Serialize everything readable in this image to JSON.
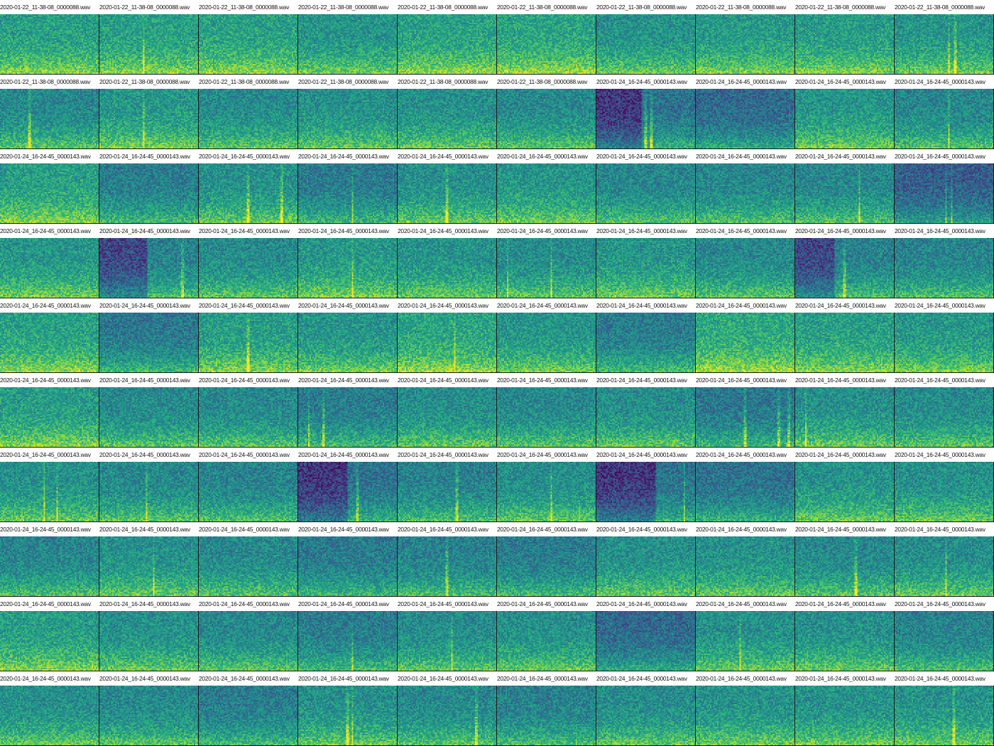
{
  "grid": {
    "rows": 10,
    "columns": 10,
    "colormap": "viridis",
    "cells": [
      {
        "label": "2020-01-22_11-38-08_0000088.wav",
        "mean": 0.56,
        "dark_left": 0,
        "bright_bands": []
      },
      {
        "label": "2020-01-22_11-38-08_0000088.wav",
        "mean": 0.56,
        "dark_left": 0,
        "bright_bands": [
          0.45
        ]
      },
      {
        "label": "2020-01-22_11-38-08_0000088.wav",
        "mean": 0.57,
        "dark_left": 0,
        "bright_bands": []
      },
      {
        "label": "2020-01-22_11-38-08_0000088.wav",
        "mean": 0.52,
        "dark_left": 0,
        "bright_bands": []
      },
      {
        "label": "2020-01-22_11-38-08_0000088.wav",
        "mean": 0.57,
        "dark_left": 0,
        "bright_bands": []
      },
      {
        "label": "2020-01-22_11-38-08_0000088.wav",
        "mean": 0.58,
        "dark_left": 0,
        "bright_bands": []
      },
      {
        "label": "2020-01-22_11-38-08_0000088.wav",
        "mean": 0.51,
        "dark_left": 0,
        "bright_bands": []
      },
      {
        "label": "2020-01-22_11-38-08_0000088.wav",
        "mean": 0.54,
        "dark_left": 0,
        "bright_bands": []
      },
      {
        "label": "2020-01-22_11-38-08_0000088.wav",
        "mean": 0.55,
        "dark_left": 0,
        "bright_bands": []
      },
      {
        "label": "2020-01-22_11-38-08_0000088.wav",
        "mean": 0.52,
        "dark_left": 0,
        "bright_bands": [
          0.55,
          0.62
        ]
      },
      {
        "label": "2020-01-22_11-38-08_0000088.wav",
        "mean": 0.47,
        "dark_left": 0,
        "bright_bands": [
          0.3
        ]
      },
      {
        "label": "2020-01-22_11-38-08_0000088.wav",
        "mean": 0.53,
        "dark_left": 0,
        "bright_bands": [
          0.45
        ]
      },
      {
        "label": "2020-01-22_11-38-08_0000088.wav",
        "mean": 0.48,
        "dark_left": 0,
        "bright_bands": []
      },
      {
        "label": "2020-01-22_11-38-08_0000088.wav",
        "mean": 0.5,
        "dark_left": 0,
        "bright_bands": []
      },
      {
        "label": "2020-01-22_11-38-08_0000088.wav",
        "mean": 0.5,
        "dark_left": 0,
        "bright_bands": []
      },
      {
        "label": "2020-01-22_11-38-08_0000088.wav",
        "mean": 0.47,
        "dark_left": 0,
        "bright_bands": []
      },
      {
        "label": "2020-01-24_16-24-45_0000143.wav",
        "mean": 0.38,
        "dark_left": 0.45,
        "bright_bands": [
          0.5,
          0.56
        ]
      },
      {
        "label": "2020-01-24_16-24-45_0000143.wav",
        "mean": 0.34,
        "dark_left": 0,
        "bright_bands": []
      },
      {
        "label": "2020-01-24_16-24-45_0000143.wav",
        "mean": 0.52,
        "dark_left": 0,
        "bright_bands": []
      },
      {
        "label": "2020-01-24_16-24-45_0000143.wav",
        "mean": 0.46,
        "dark_left": 0,
        "bright_bands": [
          0.55
        ]
      },
      {
        "label": "2020-01-24_16-24-45_0000143.wav",
        "mean": 0.56,
        "dark_left": 0,
        "bright_bands": []
      },
      {
        "label": "2020-01-24_16-24-45_0000143.wav",
        "mean": 0.42,
        "dark_left": 0,
        "bright_bands": []
      },
      {
        "label": "2020-01-24_16-24-45_0000143.wav",
        "mean": 0.5,
        "dark_left": 0,
        "bright_bands": [
          0.5,
          0.85
        ]
      },
      {
        "label": "2020-01-24_16-24-45_0000143.wav",
        "mean": 0.41,
        "dark_left": 0,
        "bright_bands": [
          0.55
        ]
      },
      {
        "label": "2020-01-24_16-24-45_0000143.wav",
        "mean": 0.5,
        "dark_left": 0,
        "bright_bands": [
          0.5
        ]
      },
      {
        "label": "2020-01-24_16-24-45_0000143.wav",
        "mean": 0.52,
        "dark_left": 0,
        "bright_bands": []
      },
      {
        "label": "2020-01-24_16-24-45_0000143.wav",
        "mean": 0.46,
        "dark_left": 0,
        "bright_bands": []
      },
      {
        "label": "2020-01-24_16-24-45_0000143.wav",
        "mean": 0.46,
        "dark_left": 0,
        "bright_bands": []
      },
      {
        "label": "2020-01-24_16-24-45_0000143.wav",
        "mean": 0.46,
        "dark_left": 0,
        "bright_bands": [
          0.65
        ]
      },
      {
        "label": "2020-01-24_16-24-45_0000143.wav",
        "mean": 0.3,
        "dark_left": 0,
        "bright_bands": [
          0.52,
          0.58
        ]
      },
      {
        "label": "2020-01-24_16-24-45_0000143.wav",
        "mean": 0.52,
        "dark_left": 0,
        "bright_bands": []
      },
      {
        "label": "2020-01-24_16-24-45_0000143.wav",
        "mean": 0.44,
        "dark_left": 0.48,
        "bright_bands": [
          0.85
        ]
      },
      {
        "label": "2020-01-24_16-24-45_0000143.wav",
        "mean": 0.48,
        "dark_left": 0,
        "bright_bands": []
      },
      {
        "label": "2020-01-24_16-24-45_0000143.wav",
        "mean": 0.53,
        "dark_left": 0,
        "bright_bands": [
          0.55
        ]
      },
      {
        "label": "2020-01-24_16-24-45_0000143.wav",
        "mean": 0.51,
        "dark_left": 0,
        "bright_bands": []
      },
      {
        "label": "2020-01-24_16-24-45_0000143.wav",
        "mean": 0.48,
        "dark_left": 0,
        "bright_bands": [
          0.1,
          0.55
        ]
      },
      {
        "label": "2020-01-24_16-24-45_0000143.wav",
        "mean": 0.52,
        "dark_left": 0,
        "bright_bands": []
      },
      {
        "label": "2020-01-24_16-24-45_0000143.wav",
        "mean": 0.47,
        "dark_left": 0,
        "bright_bands": []
      },
      {
        "label": "2020-01-24_16-24-45_0000143.wav",
        "mean": 0.44,
        "dark_left": 0.4,
        "bright_bands": [
          0.5
        ]
      },
      {
        "label": "2020-01-24_16-24-45_0000143.wav",
        "mean": 0.45,
        "dark_left": 0,
        "bright_bands": []
      },
      {
        "label": "2020-01-24_16-24-45_0000143.wav",
        "mean": 0.57,
        "dark_left": 0,
        "bright_bands": []
      },
      {
        "label": "2020-01-24_16-24-45_0000143.wav",
        "mean": 0.4,
        "dark_left": 0,
        "bright_bands": []
      },
      {
        "label": "2020-01-24_16-24-45_0000143.wav",
        "mean": 0.55,
        "dark_left": 0,
        "bright_bands": [
          0.5
        ]
      },
      {
        "label": "2020-01-24_16-24-45_0000143.wav",
        "mean": 0.52,
        "dark_left": 0,
        "bright_bands": []
      },
      {
        "label": "2020-01-24_16-24-45_0000143.wav",
        "mean": 0.58,
        "dark_left": 0,
        "bright_bands": [
          0.58
        ]
      },
      {
        "label": "2020-01-24_16-24-45_0000143.wav",
        "mean": 0.52,
        "dark_left": 0,
        "bright_bands": []
      },
      {
        "label": "2020-01-24_16-24-45_0000143.wav",
        "mean": 0.42,
        "dark_left": 0,
        "bright_bands": []
      },
      {
        "label": "2020-01-24_16-24-45_0000143.wav",
        "mean": 0.6,
        "dark_left": 0,
        "bright_bands": []
      },
      {
        "label": "2020-01-24_16-24-45_0000143.wav",
        "mean": 0.56,
        "dark_left": 0,
        "bright_bands": []
      },
      {
        "label": "2020-01-24_16-24-45_0000143.wav",
        "mean": 0.53,
        "dark_left": 0,
        "bright_bands": []
      },
      {
        "label": "2020-01-24_16-24-45_0000143.wav",
        "mean": 0.55,
        "dark_left": 0,
        "bright_bands": []
      },
      {
        "label": "2020-01-24_16-24-45_0000143.wav",
        "mean": 0.47,
        "dark_left": 0,
        "bright_bands": []
      },
      {
        "label": "2020-01-24_16-24-45_0000143.wav",
        "mean": 0.47,
        "dark_left": 0,
        "bright_bands": []
      },
      {
        "label": "2020-01-24_16-24-45_0000143.wav",
        "mean": 0.42,
        "dark_left": 0,
        "bright_bands": [
          0.1,
          0.25
        ]
      },
      {
        "label": "2020-01-24_16-24-45_0000143.wav",
        "mean": 0.49,
        "dark_left": 0,
        "bright_bands": []
      },
      {
        "label": "2020-01-24_16-24-45_0000143.wav",
        "mean": 0.47,
        "dark_left": 0,
        "bright_bands": []
      },
      {
        "label": "2020-01-24_16-24-45_0000143.wav",
        "mean": 0.49,
        "dark_left": 0,
        "bright_bands": []
      },
      {
        "label": "2020-01-24_16-24-45_0000143.wav",
        "mean": 0.4,
        "dark_left": 0,
        "bright_bands": [
          0.5,
          0.85,
          0.95
        ]
      },
      {
        "label": "2020-01-24_16-24-45_0000143.wav",
        "mean": 0.5,
        "dark_left": 0,
        "bright_bands": [
          0.1
        ]
      },
      {
        "label": "2020-01-24_16-24-45_0000143.wav",
        "mean": 0.48,
        "dark_left": 0,
        "bright_bands": []
      },
      {
        "label": "2020-01-24_16-24-45_0000143.wav",
        "mean": 0.5,
        "dark_left": 0,
        "bright_bands": [
          0.45,
          0.58
        ]
      },
      {
        "label": "2020-01-24_16-24-45_0000143.wav",
        "mean": 0.47,
        "dark_left": 0,
        "bright_bands": [
          0.48
        ]
      },
      {
        "label": "2020-01-24_16-24-45_0000143.wav",
        "mean": 0.45,
        "dark_left": 0,
        "bright_bands": []
      },
      {
        "label": "2020-01-24_16-24-45_0000143.wav",
        "mean": 0.38,
        "dark_left": 0.5,
        "bright_bands": [
          0.6
        ]
      },
      {
        "label": "2020-01-24_16-24-45_0000143.wav",
        "mean": 0.44,
        "dark_left": 0,
        "bright_bands": [
          0.6
        ]
      },
      {
        "label": "2020-01-24_16-24-45_0000143.wav",
        "mean": 0.49,
        "dark_left": 0,
        "bright_bands": [
          0.55
        ]
      },
      {
        "label": "2020-01-24_16-24-45_0000143.wav",
        "mean": 0.38,
        "dark_left": 0.6,
        "bright_bands": [
          0.9
        ]
      },
      {
        "label": "2020-01-24_16-24-45_0000143.wav",
        "mean": 0.38,
        "dark_left": 0,
        "bright_bands": []
      },
      {
        "label": "2020-01-24_16-24-45_0000143.wav",
        "mean": 0.51,
        "dark_left": 0,
        "bright_bands": []
      },
      {
        "label": "2020-01-24_16-24-45_0000143.wav",
        "mean": 0.5,
        "dark_left": 0,
        "bright_bands": []
      },
      {
        "label": "2020-01-24_16-24-45_0000143.wav",
        "mean": 0.45,
        "dark_left": 0,
        "bright_bands": []
      },
      {
        "label": "2020-01-24_16-24-45_0000143.wav",
        "mean": 0.5,
        "dark_left": 0,
        "bright_bands": [
          0.55
        ]
      },
      {
        "label": "2020-01-24_16-24-45_0000143.wav",
        "mean": 0.47,
        "dark_left": 0,
        "bright_bands": []
      },
      {
        "label": "2020-01-24_16-24-45_0000143.wav",
        "mean": 0.41,
        "dark_left": 0,
        "bright_bands": []
      },
      {
        "label": "2020-01-24_16-24-45_0000143.wav",
        "mean": 0.44,
        "dark_left": 0,
        "bright_bands": [
          0.5
        ]
      },
      {
        "label": "2020-01-24_16-24-45_0000143.wav",
        "mean": 0.42,
        "dark_left": 0,
        "bright_bands": []
      },
      {
        "label": "2020-01-24_16-24-45_0000143.wav",
        "mean": 0.5,
        "dark_left": 0,
        "bright_bands": []
      },
      {
        "label": "2020-01-24_16-24-45_0000143.wav",
        "mean": 0.5,
        "dark_left": 0,
        "bright_bands": []
      },
      {
        "label": "2020-01-24_16-24-45_0000143.wav",
        "mean": 0.47,
        "dark_left": 0,
        "bright_bands": [
          0.62
        ]
      },
      {
        "label": "2020-01-24_16-24-45_0000143.wav",
        "mean": 0.49,
        "dark_left": 0,
        "bright_bands": [
          0.52
        ]
      },
      {
        "label": "2020-01-24_16-24-45_0000143.wav",
        "mean": 0.55,
        "dark_left": 0,
        "bright_bands": []
      },
      {
        "label": "2020-01-24_16-24-45_0000143.wav",
        "mean": 0.5,
        "dark_left": 0,
        "bright_bands": []
      },
      {
        "label": "2020-01-24_16-24-45_0000143.wav",
        "mean": 0.47,
        "dark_left": 0,
        "bright_bands": []
      },
      {
        "label": "2020-01-24_16-24-45_0000143.wav",
        "mean": 0.42,
        "dark_left": 0,
        "bright_bands": [
          0.55
        ]
      },
      {
        "label": "2020-01-24_16-24-45_0000143.wav",
        "mean": 0.48,
        "dark_left": 0,
        "bright_bands": [
          0.55
        ]
      },
      {
        "label": "2020-01-24_16-24-45_0000143.wav",
        "mean": 0.5,
        "dark_left": 0,
        "bright_bands": []
      },
      {
        "label": "2020-01-24_16-24-45_0000143.wav",
        "mean": 0.34,
        "dark_left": 0,
        "bright_bands": []
      },
      {
        "label": "2020-01-24_16-24-45_0000143.wav",
        "mean": 0.5,
        "dark_left": 0,
        "bright_bands": [
          0.45
        ]
      },
      {
        "label": "2020-01-24_16-24-45_0000143.wav",
        "mean": 0.5,
        "dark_left": 0,
        "bright_bands": []
      },
      {
        "label": "2020-01-24_16-24-45_0000143.wav",
        "mean": 0.44,
        "dark_left": 0,
        "bright_bands": []
      },
      {
        "label": "2020-01-24_16-24-45_0000143.wav",
        "mean": 0.5,
        "dark_left": 0,
        "bright_bands": []
      },
      {
        "label": "2020-01-24_16-24-45_0000143.wav",
        "mean": 0.47,
        "dark_left": 0,
        "bright_bands": []
      },
      {
        "label": "2020-01-24_16-24-45_0000143.wav",
        "mean": 0.42,
        "dark_left": 0,
        "bright_bands": []
      },
      {
        "label": "2020-01-24_16-24-45_0000143.wav",
        "mean": 0.5,
        "dark_left": 0,
        "bright_bands": [
          0.5,
          0.55
        ]
      },
      {
        "label": "2020-01-24_16-24-45_0000143.wav",
        "mean": 0.47,
        "dark_left": 0,
        "bright_bands": [
          0.8
        ]
      },
      {
        "label": "2020-01-24_16-24-45_0000143.wav",
        "mean": 0.44,
        "dark_left": 0,
        "bright_bands": []
      },
      {
        "label": "2020-01-24_16-24-45_0000143.wav",
        "mean": 0.49,
        "dark_left": 0,
        "bright_bands": []
      },
      {
        "label": "2020-01-24_16-24-45_0000143.wav",
        "mean": 0.51,
        "dark_left": 0,
        "bright_bands": []
      },
      {
        "label": "2020-01-24_16-24-45_0000143.wav",
        "mean": 0.51,
        "dark_left": 0,
        "bright_bands": []
      },
      {
        "label": "2020-01-24_16-24-45_0000143.wav",
        "mean": 0.51,
        "dark_left": 0,
        "bright_bands": [
          0.6
        ]
      }
    ]
  }
}
